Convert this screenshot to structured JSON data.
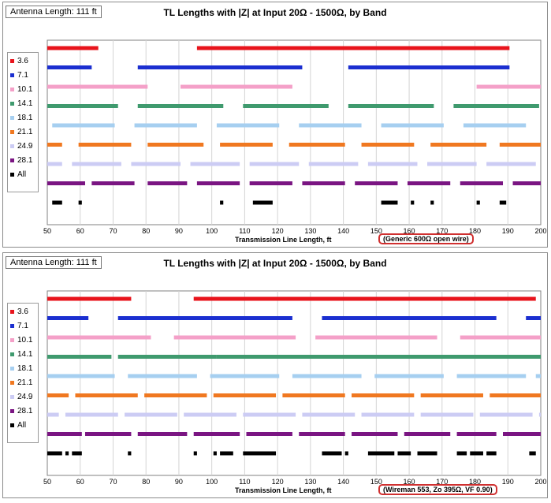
{
  "chart_data": [
    {
      "type": "bar",
      "subtype": "horizontal-range-segments",
      "antenna_label": "Antenna Length: 111 ft",
      "title": "TL Lengths with |Z| at Input 20Ω - 1500Ω, by Band",
      "xlabel": "Transmission Line Length, ft",
      "note": "(Generic 600Ω open wire)",
      "xlim": [
        50,
        200
      ],
      "xticks": [
        50,
        60,
        70,
        80,
        90,
        100,
        110,
        120,
        130,
        140,
        150,
        160,
        170,
        180,
        190,
        200
      ],
      "grid": "vertical",
      "legend_position": "left",
      "series": [
        {
          "name": "3.6",
          "color": "#e8141c",
          "ranges": [
            [
              50,
              65.5
            ],
            [
              95.5,
              190.5
            ]
          ]
        },
        {
          "name": "7.1",
          "color": "#1b2fd0",
          "ranges": [
            [
              50,
              63.5
            ],
            [
              77.5,
              127.5
            ],
            [
              141.5,
              190.5
            ]
          ]
        },
        {
          "name": "10.1",
          "color": "#f4a0c8",
          "ranges": [
            [
              50,
              80.5
            ],
            [
              90.5,
              124.5
            ],
            [
              180.5,
              200
            ]
          ]
        },
        {
          "name": "14.1",
          "color": "#3f9a6e",
          "ranges": [
            [
              50,
              71.5
            ],
            [
              77.5,
              103.5
            ],
            [
              109.5,
              135.5
            ],
            [
              141.5,
              167.5
            ],
            [
              173.5,
              199.5
            ]
          ]
        },
        {
          "name": "18.1",
          "color": "#a6cff0",
          "ranges": [
            [
              51.5,
              70.5
            ],
            [
              76.5,
              95.5
            ],
            [
              101.5,
              120.5
            ],
            [
              126.5,
              145.5
            ],
            [
              151.5,
              170.5
            ],
            [
              176.5,
              195.5
            ]
          ]
        },
        {
          "name": "21.1",
          "color": "#f07820",
          "ranges": [
            [
              50,
              54.5
            ],
            [
              59.5,
              75.5
            ],
            [
              80.5,
              97.5
            ],
            [
              102.5,
              118.5
            ],
            [
              123.5,
              140.5
            ],
            [
              145.5,
              161.5
            ],
            [
              166.5,
              183.5
            ],
            [
              187.5,
              200
            ]
          ]
        },
        {
          "name": "24.9",
          "color": "#ccccf4",
          "ranges": [
            [
              50,
              54.5
            ],
            [
              57.5,
              72.5
            ],
            [
              75.5,
              90.5
            ],
            [
              93.5,
              108.5
            ],
            [
              111.5,
              126.5
            ],
            [
              129.5,
              144.5
            ],
            [
              147.5,
              162.5
            ],
            [
              165.5,
              180.5
            ],
            [
              183.5,
              198.5
            ]
          ]
        },
        {
          "name": "28.1",
          "color": "#7a1582",
          "ranges": [
            [
              50,
              61.5
            ],
            [
              63.5,
              76.5
            ],
            [
              80.5,
              92.5
            ],
            [
              95.5,
              108.5
            ],
            [
              111.5,
              124.5
            ],
            [
              127.5,
              140.5
            ],
            [
              143.5,
              156.5
            ],
            [
              159.5,
              172.5
            ],
            [
              175.5,
              188.5
            ],
            [
              191.5,
              200
            ]
          ]
        },
        {
          "name": "All",
          "color": "#000000",
          "ranges": [
            [
              51.5,
              54.5
            ],
            [
              59.5,
              60.5
            ],
            [
              102.5,
              103.5
            ],
            [
              112.5,
              118.5
            ],
            [
              151.5,
              156.5
            ],
            [
              160.5,
              161.5
            ],
            [
              166.5,
              167.5
            ],
            [
              180.5,
              181.5
            ],
            [
              187.5,
              189.5
            ]
          ]
        }
      ]
    },
    {
      "type": "bar",
      "subtype": "horizontal-range-segments",
      "antenna_label": "Antenna Length: 111 ft",
      "title": "TL Lengths with |Z| at Input 20Ω - 1500Ω, by Band",
      "xlabel": "Transmission Line Length, ft",
      "note": "(Wireman 553, Zo 395Ω, VF 0.90)",
      "xlim": [
        50,
        200
      ],
      "xticks": [
        50,
        60,
        70,
        80,
        90,
        100,
        110,
        120,
        130,
        140,
        150,
        160,
        170,
        180,
        190,
        200
      ],
      "grid": "vertical",
      "legend_position": "left",
      "series": [
        {
          "name": "3.6",
          "color": "#e8141c",
          "ranges": [
            [
              50,
              75.5
            ],
            [
              94.5,
              198.5
            ]
          ]
        },
        {
          "name": "7.1",
          "color": "#1b2fd0",
          "ranges": [
            [
              50,
              62.5
            ],
            [
              71.5,
              124.5
            ],
            [
              133.5,
              186.5
            ],
            [
              195.5,
              200
            ]
          ]
        },
        {
          "name": "10.1",
          "color": "#f4a0c8",
          "ranges": [
            [
              50,
              81.5
            ],
            [
              88.5,
              125.5
            ],
            [
              131.5,
              168.5
            ],
            [
              175.5,
              200
            ]
          ]
        },
        {
          "name": "14.1",
          "color": "#3f9a6e",
          "ranges": [
            [
              50,
              69.5
            ],
            [
              71.5,
              101.5
            ],
            [
              101.5,
              200
            ]
          ]
        },
        {
          "name": "18.1",
          "color": "#a6cff0",
          "ranges": [
            [
              50,
              70.5
            ],
            [
              74.5,
              95.5
            ],
            [
              99.5,
              120.5
            ],
            [
              124.5,
              145.5
            ],
            [
              149.5,
              170.5
            ],
            [
              174.5,
              195.5
            ],
            [
              198.5,
              200
            ]
          ]
        },
        {
          "name": "21.1",
          "color": "#f07820",
          "ranges": [
            [
              50,
              56.5
            ],
            [
              58.5,
              77.5
            ],
            [
              79.5,
              98.5
            ],
            [
              100.5,
              119.5
            ],
            [
              121.5,
              140.5
            ],
            [
              142.5,
              161.5
            ],
            [
              163.5,
              182.5
            ],
            [
              184.5,
              200
            ]
          ]
        },
        {
          "name": "24.9",
          "color": "#ccccf4",
          "ranges": [
            [
              50,
              53.5
            ],
            [
              55.5,
              71.5
            ],
            [
              73.5,
              89.5
            ],
            [
              91.5,
              107.5
            ],
            [
              109.5,
              125.5
            ],
            [
              127.5,
              143.5
            ],
            [
              145.5,
              161.5
            ],
            [
              163.5,
              179.5
            ],
            [
              181.5,
              197.5
            ],
            [
              199.5,
              200
            ]
          ]
        },
        {
          "name": "28.1",
          "color": "#7a1582",
          "ranges": [
            [
              50,
              60.5
            ],
            [
              61.5,
              75.5
            ],
            [
              77.5,
              92.5
            ],
            [
              94.5,
              108.5
            ],
            [
              110.5,
              124.5
            ],
            [
              126.5,
              140.5
            ],
            [
              142.5,
              156.5
            ],
            [
              158.5,
              172.5
            ],
            [
              174.5,
              186.5
            ],
            [
              188.5,
              200
            ]
          ]
        },
        {
          "name": "All",
          "color": "#000000",
          "ranges": [
            [
              50,
              54.5
            ],
            [
              55.5,
              56.5
            ],
            [
              57.5,
              60.5
            ],
            [
              74.5,
              75.5
            ],
            [
              94.5,
              95.5
            ],
            [
              100.5,
              101.5
            ],
            [
              102.5,
              106.5
            ],
            [
              109.5,
              119.5
            ],
            [
              133.5,
              139.5
            ],
            [
              140.5,
              141.5
            ],
            [
              147.5,
              155.5
            ],
            [
              156.5,
              160.5
            ],
            [
              162.5,
              168.5
            ],
            [
              174.5,
              177.5
            ],
            [
              178.5,
              182.5
            ],
            [
              183.5,
              186.5
            ],
            [
              196.5,
              198.5
            ]
          ]
        }
      ]
    }
  ]
}
